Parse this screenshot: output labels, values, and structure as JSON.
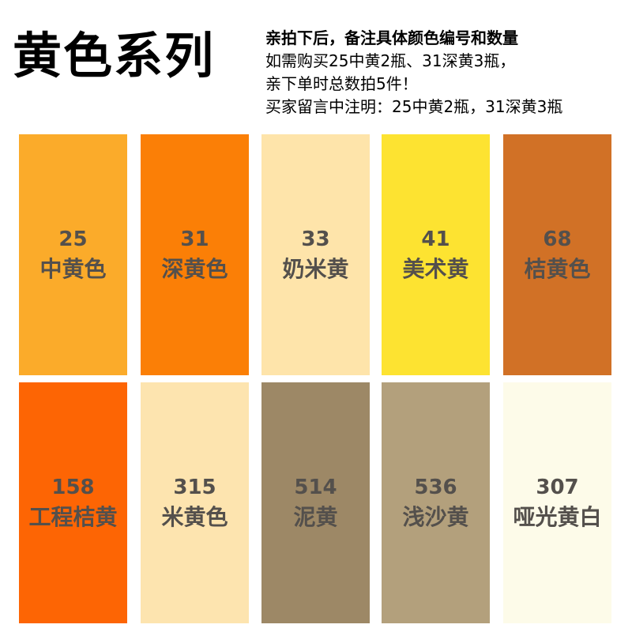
{
  "title": "黄色系列",
  "notes": [
    "亲拍下后，备注具体颜色编号和数量",
    "如需购买25中黄2瓶、31深黄3瓶，",
    "亲下单时总数拍5件！",
    "买家留言中注明：25中黄2瓶，31深黄3瓶"
  ],
  "swatches": [
    {
      "code": "25",
      "name": "中黄色",
      "color": "#fbab2a"
    },
    {
      "code": "31",
      "name": "深黄色",
      "color": "#fb7f06"
    },
    {
      "code": "33",
      "name": "奶米黄",
      "color": "#fee4aa"
    },
    {
      "code": "41",
      "name": "美术黄",
      "color": "#fde331"
    },
    {
      "code": "68",
      "name": "桔黄色",
      "color": "#d17126"
    },
    {
      "code": "158",
      "name": "工程桔黄",
      "color": "#fd6504"
    },
    {
      "code": "315",
      "name": "米黄色",
      "color": "#fde4af"
    },
    {
      "code": "514",
      "name": "泥黄",
      "color": "#9d8866"
    },
    {
      "code": "536",
      "name": "浅沙黄",
      "color": "#b3a07c"
    },
    {
      "code": "307",
      "name": "哑光黄白",
      "color": "#fdfbe9"
    }
  ]
}
